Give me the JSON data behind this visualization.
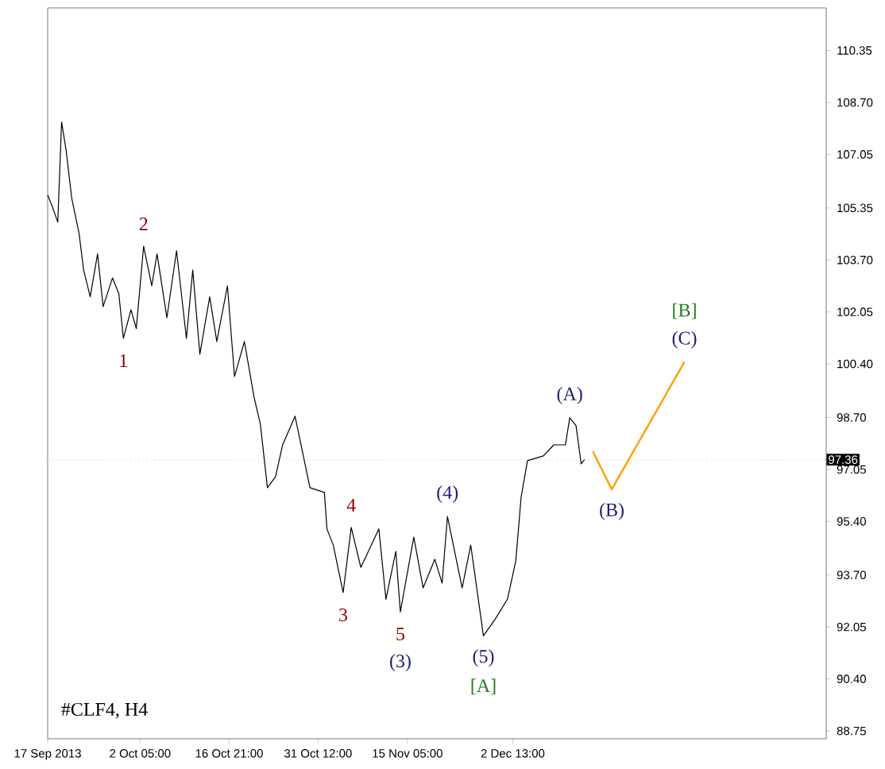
{
  "chart_data": {
    "type": "line",
    "xlim": [
      "2013-09-17T00:00",
      "2014-01-23T03:00"
    ],
    "ylim": [
      88.5,
      111.7
    ],
    "xticks": [
      {
        "value": "2013-09-17T00:00",
        "label": "17 Sep 2013"
      },
      {
        "value": "2013-10-02T05:00",
        "label": "2 Oct 05:00"
      },
      {
        "value": "2013-10-16T21:00",
        "label": "16 Oct 21:00"
      },
      {
        "value": "2013-10-31T12:00",
        "label": "31 Oct 12:00"
      },
      {
        "value": "2013-11-15T05:00",
        "label": "15 Nov 05:00"
      },
      {
        "value": "2013-12-02T13:00",
        "label": "2 Dec 13:00"
      }
    ],
    "yticks": [
      {
        "value": 110.35,
        "label": "110.35"
      },
      {
        "value": 108.7,
        "label": "108.70"
      },
      {
        "value": 107.05,
        "label": "107.05"
      },
      {
        "value": 105.35,
        "label": "105.35"
      },
      {
        "value": 103.7,
        "label": "103.70"
      },
      {
        "value": 102.05,
        "label": "102.05"
      },
      {
        "value": 100.4,
        "label": "100.40"
      },
      {
        "value": 98.7,
        "label": "98.70"
      },
      {
        "value": 97.05,
        "label": "97.05"
      },
      {
        "value": 95.4,
        "label": "95.40"
      },
      {
        "value": 93.7,
        "label": "93.70"
      },
      {
        "value": 92.05,
        "label": "92.05"
      },
      {
        "value": 90.4,
        "label": "90.40"
      },
      {
        "value": 88.75,
        "label": "88.75"
      }
    ],
    "series": [
      {
        "color": "#000000",
        "x": [
          "2013-09-17T00:00",
          "2013-09-17T18:00",
          "2013-09-18T16:00",
          "2013-09-19T07:00",
          "2013-09-20T01:00",
          "2013-09-20T23:00",
          "2013-09-22T04:00",
          "2013-09-22T22:00",
          "2013-09-24T00:00",
          "2013-09-25T05:00",
          "2013-09-26T03:00",
          "2013-09-27T16:00",
          "2013-09-28T17:00",
          "2013-09-29T11:00",
          "2013-09-30T17:00",
          "2013-10-01T14:00",
          "2013-10-02T19:00",
          "2013-10-04T03:00",
          "2013-10-05T00:00",
          "2013-10-06T15:00",
          "2013-10-08T05:00",
          "2013-10-09T20:00",
          "2013-10-10T21:00",
          "2013-10-12T01:00",
          "2013-10-13T16:00",
          "2013-10-14T20:00",
          "2013-10-16T14:00",
          "2013-10-17T18:00",
          "2013-10-19T09:00",
          "2013-10-20T23:00",
          "2013-10-22T00:00",
          "2013-10-23T04:00",
          "2013-10-24T12:00",
          "2013-10-25T16:00",
          "2013-10-27T17:00",
          "2013-10-30T04:00",
          "2013-11-01T13:00",
          "2013-11-01T23:00",
          "2013-11-03T00:00",
          "2013-11-04T15:00",
          "2013-11-05T23:00",
          "2013-11-07T13:00",
          "2013-11-10T12:00",
          "2013-11-11T16:00",
          "2013-11-13T07:00",
          "2013-11-14T01:00",
          "2013-11-16T06:00",
          "2013-11-17T19:00",
          "2013-11-19T17:00",
          "2013-11-20T22:00",
          "2013-11-21T19:00",
          "2013-11-24T05:00",
          "2013-11-25T15:00",
          "2013-11-27T17:00",
          "2013-11-29T14:00",
          "2013-12-01T16:00",
          "2013-12-03T01:00",
          "2013-12-03T22:00",
          "2013-12-04T23:00",
          "2013-12-07T14:00",
          "2013-12-09T07:00",
          "2013-12-11T05:00",
          "2013-12-11T22:00",
          "2013-12-12T23:00",
          "2013-12-13T19:00",
          "2013-12-14T08:00"
        ],
        "values": [
          105.76,
          105.4,
          104.9,
          108.08,
          107.17,
          105.66,
          104.54,
          103.38,
          102.53,
          103.89,
          102.22,
          103.13,
          102.63,
          101.21,
          102.12,
          101.52,
          104.14,
          102.88,
          103.89,
          101.87,
          103.99,
          101.21,
          103.38,
          100.71,
          102.53,
          101.11,
          102.88,
          100.0,
          101.11,
          99.35,
          98.49,
          96.47,
          96.82,
          97.83,
          98.74,
          96.47,
          96.32,
          95.16,
          94.65,
          93.14,
          95.21,
          93.94,
          95.16,
          92.93,
          94.45,
          92.53,
          94.9,
          93.29,
          94.2,
          93.44,
          95.56,
          93.29,
          94.65,
          91.77,
          92.28,
          92.93,
          94.15,
          96.17,
          97.33,
          97.48,
          97.83,
          97.83,
          98.69,
          98.44,
          97.23,
          97.36
        ]
      },
      {
        "color": "#ffa000",
        "x": [
          "2013-12-15T17:00",
          "2013-12-18T20:00",
          "2013-12-30T19:00"
        ],
        "values": [
          97.63,
          96.42,
          100.46
        ]
      }
    ],
    "ref_lines": [
      {
        "axis": "y",
        "value": 97.36,
        "label": "97.36",
        "color": "#c8c8c8",
        "line_style": "dotted"
      }
    ],
    "annotations": [
      {
        "text": "1",
        "x": "2013-09-29T11:00",
        "y": 101.21
      },
      {
        "text": "2",
        "x": "2013-10-02T19:00",
        "y": 104.14
      },
      {
        "text": "3",
        "x": "2013-11-04T15:00",
        "y": 93.14
      },
      {
        "text": "4",
        "x": "2013-11-05T23:00",
        "y": 95.21
      },
      {
        "text": "5",
        "x": "2013-11-14T01:00",
        "y": 92.53
      },
      {
        "text": "(3)",
        "x": "2013-11-14T01:00",
        "y": 92.53
      },
      {
        "text": "(4)",
        "x": "2013-11-21T19:00",
        "y": 95.56
      },
      {
        "text": "(5)",
        "x": "2013-11-27T17:00",
        "y": 91.77
      },
      {
        "text": "(A)",
        "x": "2013-12-11T22:00",
        "y": 98.69
      },
      {
        "text": "(B)",
        "x": "2013-12-18T20:00",
        "y": 96.42
      },
      {
        "text": "(C)",
        "x": "2013-12-30T19:00",
        "y": 100.46
      },
      {
        "text": "[A]",
        "x": "2013-11-27T17:00",
        "y": 91.77
      },
      {
        "text": "[B]",
        "x": "2013-12-30T19:00",
        "y": 100.46
      },
      "#CLF4, H4"
    ]
  }
}
